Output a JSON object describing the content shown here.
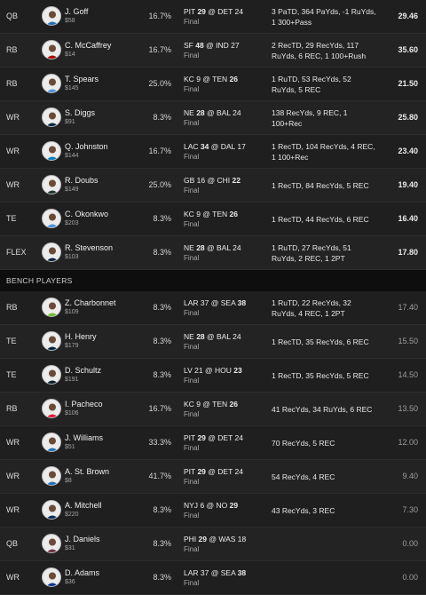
{
  "starters": [
    {
      "pos": "QB",
      "name": "J. Goff",
      "salary": "$58",
      "own": "16.7%",
      "away": "PIT",
      "away_score": "29",
      "home": "DET",
      "home_score": "24",
      "winner": "away",
      "status": "Final",
      "stats": "3 PaTD, 364 PaYds, -1 RuYds, 1 300+Pass",
      "pts": "29.46",
      "jersey": "#1d6fb8"
    },
    {
      "pos": "RB",
      "name": "C. McCaffrey",
      "salary": "$14",
      "own": "16.7%",
      "away": "SF",
      "away_score": "48",
      "home": "IND",
      "home_score": "27",
      "winner": "away",
      "status": "Final",
      "stats": "2 RecTD, 29 RecYds, 117 RuYds, 6 REC, 1 100+Rush",
      "pts": "35.60",
      "jersey": "#aa0000"
    },
    {
      "pos": "RB",
      "name": "T. Spears",
      "salary": "$145",
      "own": "25.0%",
      "away": "KC",
      "away_score": "9",
      "home": "TEN",
      "home_score": "26",
      "winner": "home",
      "status": "Final",
      "stats": "1 RuTD, 53 RecYds, 52 RuYds, 5 REC",
      "pts": "21.50",
      "jersey": "#4b92db"
    },
    {
      "pos": "WR",
      "name": "S. Diggs",
      "salary": "$91",
      "own": "8.3%",
      "away": "NE",
      "away_score": "28",
      "home": "BAL",
      "home_score": "24",
      "winner": "away",
      "status": "Final",
      "stats": "138 RecYds, 9 REC, 1 100+Rec",
      "pts": "25.80",
      "jersey": "#002244"
    },
    {
      "pos": "WR",
      "name": "Q. Johnston",
      "salary": "$144",
      "own": "16.7%",
      "away": "LAC",
      "away_score": "34",
      "home": "DAL",
      "home_score": "17",
      "winner": "away",
      "status": "Final",
      "stats": "1 RecTD, 104 RecYds, 4 REC, 1 100+Rec",
      "pts": "23.40",
      "jersey": "#0080c6"
    },
    {
      "pos": "WR",
      "name": "R. Doubs",
      "salary": "$149",
      "own": "25.0%",
      "away": "GB",
      "away_score": "16",
      "home": "CHI",
      "home_score": "22",
      "winner": "home",
      "status": "Final",
      "stats": "1 RecTD, 84 RecYds, 5 REC",
      "pts": "19.40",
      "jersey": "#203731"
    },
    {
      "pos": "TE",
      "name": "C. Okonkwo",
      "salary": "$203",
      "own": "8.3%",
      "away": "KC",
      "away_score": "9",
      "home": "TEN",
      "home_score": "26",
      "winner": "home",
      "status": "Final",
      "stats": "1 RecTD, 44 RecYds, 6 REC",
      "pts": "16.40",
      "jersey": "#4b92db"
    },
    {
      "pos": "FLEX",
      "name": "R. Stevenson",
      "salary": "$103",
      "own": "8.3%",
      "away": "NE",
      "away_score": "28",
      "home": "BAL",
      "home_score": "24",
      "winner": "away",
      "status": "Final",
      "stats": "1 RuTD, 27 RecYds, 51 RuYds, 2 REC, 1 2PT",
      "pts": "17.80",
      "jersey": "#002244"
    }
  ],
  "bench_header": "BENCH PLAYERS",
  "bench": [
    {
      "pos": "RB",
      "name": "Z. Charbonnet",
      "salary": "$109",
      "own": "8.3%",
      "away": "LAR",
      "away_score": "37",
      "home": "SEA",
      "home_score": "38",
      "winner": "home",
      "status": "Final",
      "stats": "1 RuTD, 22 RecYds, 32 RuYds, 4 REC, 1 2PT",
      "pts": "17.40",
      "jersey": "#69be28"
    },
    {
      "pos": "TE",
      "name": "H. Henry",
      "salary": "$179",
      "own": "8.3%",
      "away": "NE",
      "away_score": "28",
      "home": "BAL",
      "home_score": "24",
      "winner": "away",
      "status": "Final",
      "stats": "1 RecTD, 35 RecYds, 6 REC",
      "pts": "15.50",
      "jersey": "#002244"
    },
    {
      "pos": "TE",
      "name": "D. Schultz",
      "salary": "$191",
      "own": "8.3%",
      "away": "LV",
      "away_score": "21",
      "home": "HOU",
      "home_score": "23",
      "winner": "home",
      "status": "Final",
      "stats": "1 RecTD, 35 RecYds, 5 REC",
      "pts": "14.50",
      "jersey": "#03202f"
    },
    {
      "pos": "RB",
      "name": "I. Pacheco",
      "salary": "$106",
      "own": "16.7%",
      "away": "KC",
      "away_score": "9",
      "home": "TEN",
      "home_score": "26",
      "winner": "home",
      "status": "Final",
      "stats": "41 RecYds, 34 RuYds, 6 REC",
      "pts": "13.50",
      "jersey": "#e31837"
    },
    {
      "pos": "WR",
      "name": "J. Williams",
      "salary": "$51",
      "own": "33.3%",
      "away": "PIT",
      "away_score": "29",
      "home": "DET",
      "home_score": "24",
      "winner": "away",
      "status": "Final",
      "stats": "70 RecYds, 5 REC",
      "pts": "12.00",
      "jersey": "#1d6fb8"
    },
    {
      "pos": "WR",
      "name": "A. St. Brown",
      "salary": "$8",
      "own": "41.7%",
      "away": "PIT",
      "away_score": "29",
      "home": "DET",
      "home_score": "24",
      "winner": "away",
      "status": "Final",
      "stats": "54 RecYds, 4 REC",
      "pts": "9.40",
      "jersey": "#1d6fb8"
    },
    {
      "pos": "WR",
      "name": "A. Mitchell",
      "salary": "$220",
      "own": "8.3%",
      "away": "NYJ",
      "away_score": "6",
      "home": "NO",
      "home_score": "29",
      "winner": "home",
      "status": "Final",
      "stats": "43 RecYds, 3 REC",
      "pts": "7.30",
      "jersey": "#002c5f"
    },
    {
      "pos": "QB",
      "name": "J. Daniels",
      "salary": "$31",
      "own": "8.3%",
      "away": "PHI",
      "away_score": "29",
      "home": "WAS",
      "home_score": "18",
      "winner": "away",
      "status": "Final",
      "stats": "",
      "pts": "0.00",
      "jersey": "#773141"
    },
    {
      "pos": "WR",
      "name": "D. Adams",
      "salary": "$36",
      "own": "8.3%",
      "away": "LAR",
      "away_score": "37",
      "home": "SEA",
      "home_score": "38",
      "winner": "home",
      "status": "Final",
      "stats": "",
      "pts": "0.00",
      "jersey": "#003594"
    }
  ]
}
